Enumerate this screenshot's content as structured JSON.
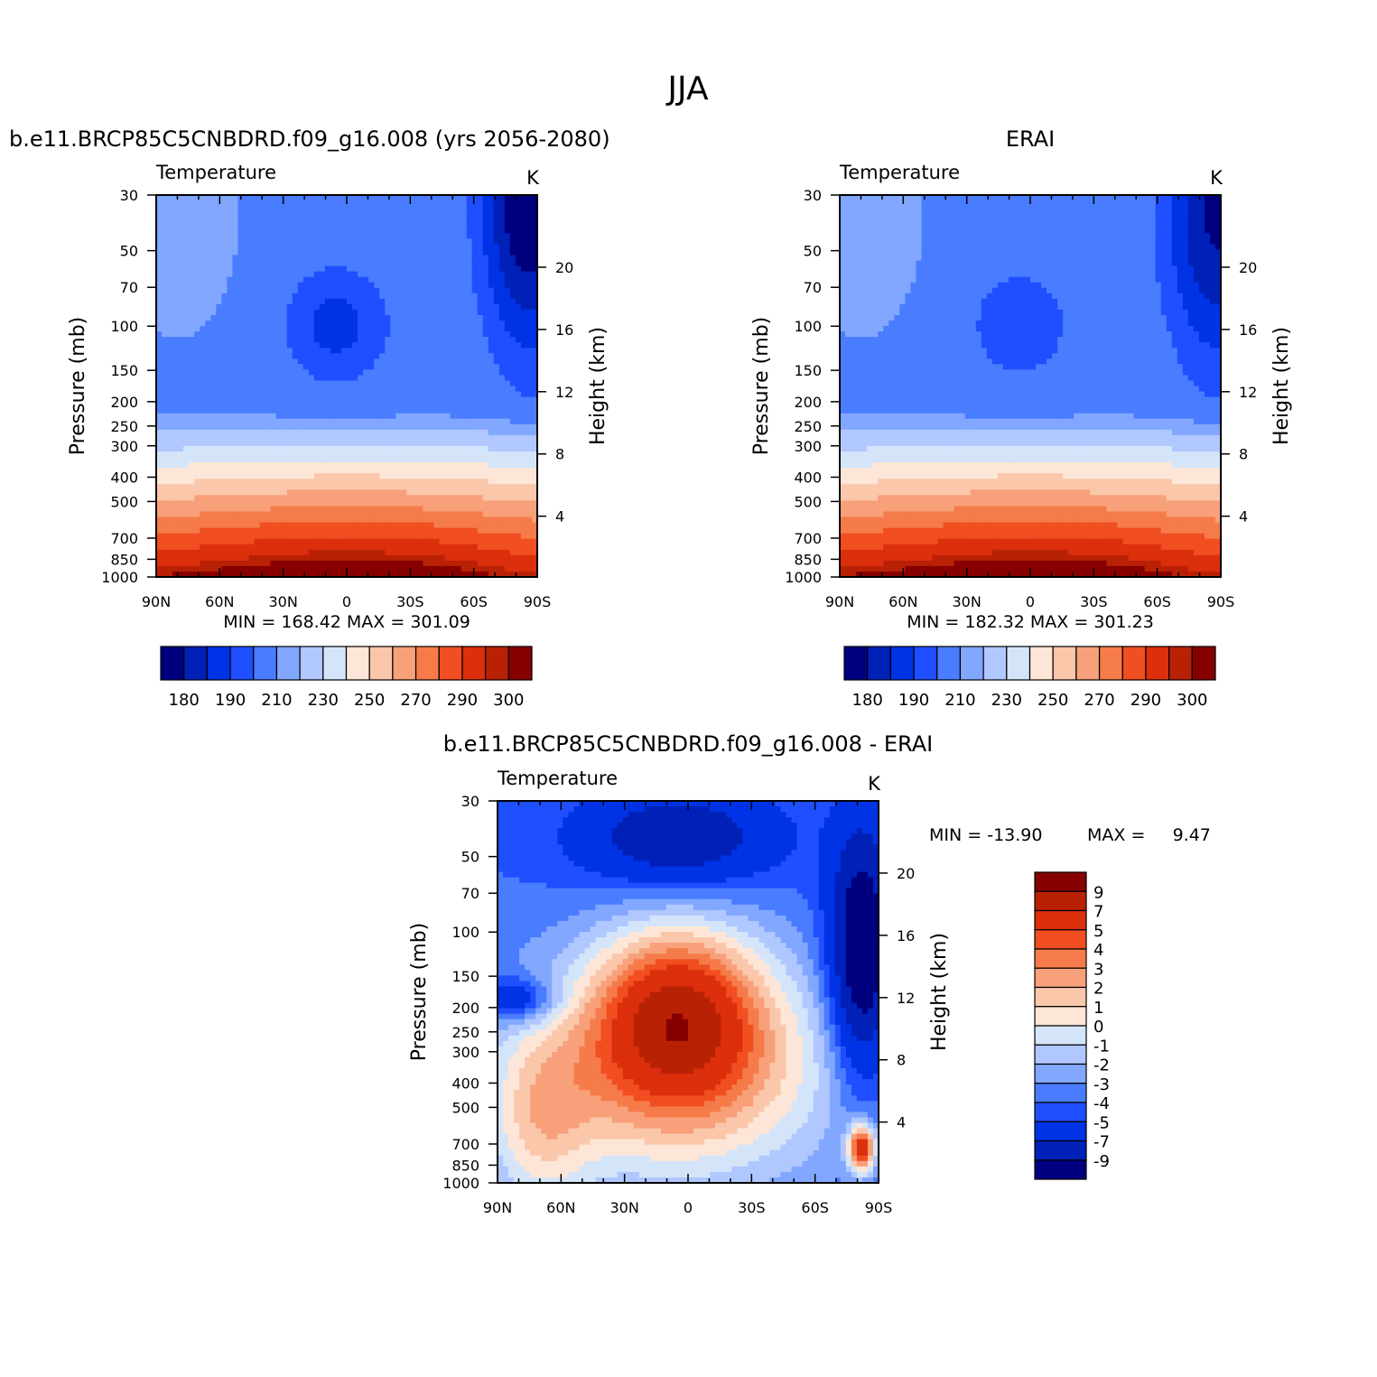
{
  "title": "JJA",
  "colors": {
    "temp_palette": [
      "#00007f",
      "#0021b8",
      "#0033e5",
      "#1f4fff",
      "#4a7cff",
      "#82a7ff",
      "#b0c8ff",
      "#d4e5fa",
      "#fde6d7",
      "#fbc7ab",
      "#f8a07a",
      "#f57b4a",
      "#f14e21",
      "#dc2f0c",
      "#b92105",
      "#870000"
    ],
    "diff_palette": [
      "#00007f",
      "#0021b8",
      "#0033e5",
      "#1f4fff",
      "#4a7cff",
      "#82a7ff",
      "#b0c8ff",
      "#d4e5fa",
      "#fde6d7",
      "#fbc7ab",
      "#f8a07a",
      "#f57b4a",
      "#f14e21",
      "#dc2f0c",
      "#b92105",
      "#870000"
    ]
  },
  "axis": {
    "xticks": [
      "90N",
      "60N",
      "30N",
      "0",
      "30S",
      "60S",
      "90S"
    ],
    "pressure_ticks": [
      "30",
      "50",
      "70",
      "100",
      "150",
      "200",
      "250",
      "300",
      "400",
      "500",
      "700",
      "850",
      "1000"
    ],
    "height_ticks": [
      "20",
      "16",
      "12",
      "8",
      "4"
    ],
    "ylabel_left": "Pressure (mb)",
    "ylabel_right": "Height (km)"
  },
  "panels": [
    {
      "title": "b.e11.BRCP85C5CNBDRD.f09_g16.008 (yrs 2056-2080)",
      "variable": "Temperature",
      "units": "K",
      "stats": "MIN = 168.42   MAX = 301.09"
    },
    {
      "title": "ERAI",
      "variable": "Temperature",
      "units": "K",
      "stats": "MIN = 182.32   MAX = 301.23"
    },
    {
      "title": "b.e11.BRCP85C5CNBDRD.f09_g16.008 - ERAI",
      "variable": "Temperature",
      "units": "K",
      "stats_min": "MIN = -13.90",
      "stats_max": "MAX =     9.47"
    }
  ],
  "colorbars": {
    "temp_labels": [
      "180",
      "190",
      "210",
      "230",
      "250",
      "270",
      "290",
      "300"
    ],
    "diff_labels": [
      "9",
      "7",
      "5",
      "4",
      "3",
      "2",
      "1",
      "0",
      "-1",
      "-2",
      "-3",
      "-4",
      "-5",
      "-7",
      "-9"
    ]
  },
  "chart_data": [
    {
      "type": "heatmap",
      "title": "b.e11.BRCP85C5CNBDRD.f09_g16.008 (yrs 2056-2080)",
      "variable": "Temperature",
      "units": "K",
      "x": [
        "90N",
        "60N",
        "30N",
        "0",
        "30S",
        "60S",
        "90S"
      ],
      "y": [
        30,
        50,
        70,
        100,
        150,
        200,
        250,
        300,
        400,
        500,
        700,
        850,
        1000
      ],
      "contour_levels": [
        175,
        180,
        185,
        190,
        200,
        210,
        220,
        230,
        240,
        250,
        260,
        270,
        280,
        290,
        295,
        300
      ],
      "min": 168.42,
      "max": 301.09,
      "ylabel": "Pressure (mb)",
      "ylabel_right": "Height (km)"
    },
    {
      "type": "heatmap",
      "title": "ERAI",
      "variable": "Temperature",
      "units": "K",
      "x": [
        "90N",
        "60N",
        "30N",
        "0",
        "30S",
        "60S",
        "90S"
      ],
      "y": [
        30,
        50,
        70,
        100,
        150,
        200,
        250,
        300,
        400,
        500,
        700,
        850,
        1000
      ],
      "contour_levels": [
        175,
        180,
        185,
        190,
        200,
        210,
        220,
        230,
        240,
        250,
        260,
        270,
        280,
        290,
        295,
        300
      ],
      "min": 182.32,
      "max": 301.23,
      "ylabel": "Pressure (mb)",
      "ylabel_right": "Height (km)"
    },
    {
      "type": "heatmap",
      "title": "b.e11.BRCP85C5CNBDRD.f09_g16.008 - ERAI",
      "variable": "Temperature",
      "units": "K",
      "x": [
        "90N",
        "60N",
        "30N",
        "0",
        "30S",
        "60S",
        "90S"
      ],
      "y": [
        30,
        50,
        70,
        100,
        150,
        200,
        250,
        300,
        400,
        500,
        700,
        850,
        1000
      ],
      "contour_levels": [
        -9,
        -7,
        -5,
        -4,
        -3,
        -2,
        -1,
        0,
        1,
        2,
        3,
        4,
        5,
        7,
        9
      ],
      "min": -13.9,
      "max": 9.47,
      "ylabel": "Pressure (mb)",
      "ylabel_right": "Height (km)"
    }
  ]
}
